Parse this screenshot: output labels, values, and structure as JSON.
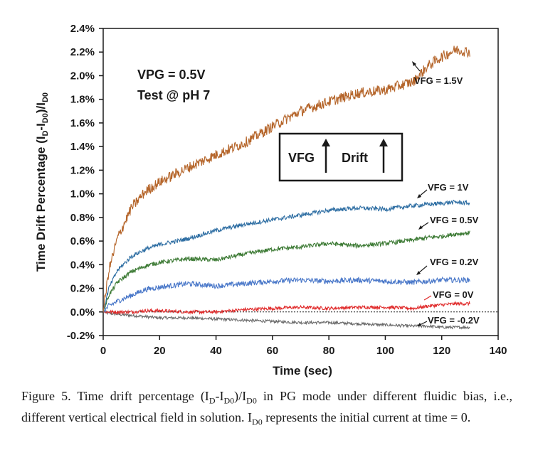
{
  "chart_data": {
    "type": "line",
    "xlabel": "Time (sec)",
    "ylabel_main": "Time Drift Percentage  (I",
    "ylabel_sub1": "D",
    "ylabel_mid": "-I",
    "ylabel_sub2": "D0",
    "ylabel_end": ")/I",
    "ylabel_sub3": "D0",
    "xlim": [
      0,
      140
    ],
    "ylim": [
      -0.2,
      2.4
    ],
    "x_ticks": [
      "0",
      "20",
      "40",
      "60",
      "80",
      "100",
      "120",
      "140"
    ],
    "x_tick_values": [
      0,
      20,
      40,
      60,
      80,
      100,
      120,
      140
    ],
    "y_ticks": [
      "-0.2%",
      "0.0%",
      "0.2%",
      "0.4%",
      "0.6%",
      "0.8%",
      "1.0%",
      "1.2%",
      "1.4%",
      "1.6%",
      "1.8%",
      "2.0%",
      "2.2%",
      "2.4%"
    ],
    "y_tick_values": [
      -0.2,
      0.0,
      0.2,
      0.4,
      0.6,
      0.8,
      1.0,
      1.2,
      1.4,
      1.6,
      1.8,
      2.0,
      2.2,
      2.4
    ],
    "annotation_vpg": "VPG = 0.5V",
    "annotation_test": "Test @ pH 7",
    "inset_vfg": "VFG",
    "inset_drift": "Drift",
    "x": [
      0,
      2,
      5,
      10,
      15,
      20,
      30,
      40,
      50,
      60,
      70,
      80,
      90,
      100,
      110,
      115,
      120,
      125,
      130
    ],
    "series": [
      {
        "name": "VFG = 1.5V",
        "color": "#b5652a",
        "values": [
          0.0,
          0.35,
          0.62,
          0.88,
          1.02,
          1.1,
          1.22,
          1.33,
          1.43,
          1.57,
          1.7,
          1.78,
          1.85,
          1.88,
          1.95,
          2.08,
          2.16,
          2.22,
          2.2
        ]
      },
      {
        "name": "VFG = 1V",
        "color": "#2e6ea3",
        "values": [
          0.0,
          0.2,
          0.35,
          0.47,
          0.53,
          0.57,
          0.62,
          0.69,
          0.74,
          0.78,
          0.82,
          0.86,
          0.88,
          0.87,
          0.9,
          0.91,
          0.92,
          0.93,
          0.92
        ]
      },
      {
        "name": "VFG = 0.5V",
        "color": "#3c7a34",
        "values": [
          0.0,
          0.14,
          0.25,
          0.34,
          0.39,
          0.42,
          0.45,
          0.44,
          0.49,
          0.53,
          0.55,
          0.58,
          0.56,
          0.58,
          0.61,
          0.63,
          0.64,
          0.66,
          0.67
        ]
      },
      {
        "name": "VFG = 0.2V",
        "color": "#4a78c9",
        "values": [
          0.0,
          0.05,
          0.09,
          0.14,
          0.19,
          0.21,
          0.24,
          0.22,
          0.24,
          0.26,
          0.27,
          0.26,
          0.27,
          0.26,
          0.25,
          0.26,
          0.27,
          0.27,
          0.27
        ]
      },
      {
        "name": "VFG = 0V",
        "color": "#e02a2a",
        "values": [
          0.0,
          0.0,
          0.0,
          0.0,
          0.01,
          0.01,
          0.0,
          0.0,
          0.02,
          0.03,
          0.04,
          0.03,
          0.04,
          0.04,
          0.03,
          0.05,
          0.06,
          0.07,
          0.07
        ]
      },
      {
        "name": "VFG = -0.2V",
        "color": "#6b6b6b",
        "values": [
          0.0,
          -0.01,
          -0.02,
          -0.03,
          -0.04,
          -0.05,
          -0.05,
          -0.06,
          -0.07,
          -0.08,
          -0.09,
          -0.09,
          -0.1,
          -0.11,
          -0.12,
          -0.12,
          -0.13,
          -0.13,
          -0.13
        ]
      }
    ],
    "noise": [
      0.045,
      0.018,
      0.018,
      0.022,
      0.014,
      0.012
    ]
  },
  "caption": {
    "line1": "Figure 5. Time drift percentage (I",
    "sub_a": "D",
    "mid_a": "-I",
    "sub_b": "D0",
    "mid_b": ")/I",
    "sub_c": "D0",
    "rest1": " in PG mode under different fluidic bias, i.e., different vertical electrical field in solution. I",
    "sub_d": "D0",
    "rest2": " represents the initial current at time = 0."
  }
}
